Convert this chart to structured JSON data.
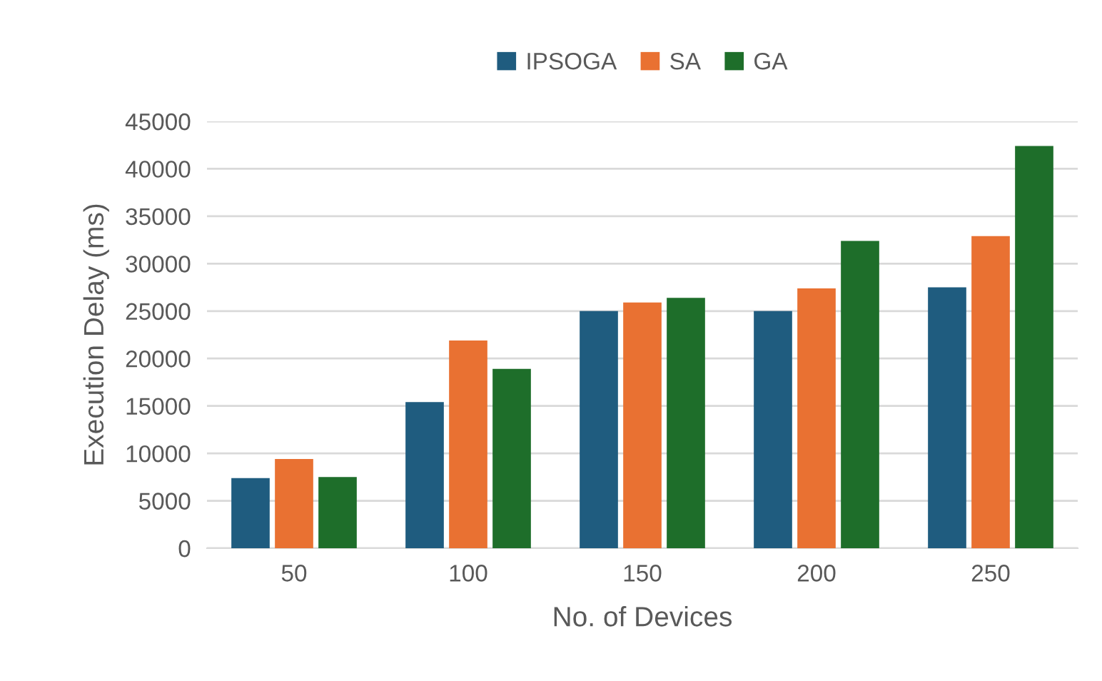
{
  "chart_data": {
    "type": "bar",
    "xlabel": "No. of Devices",
    "ylabel": "Execution Delay (ms)",
    "categories": [
      "50",
      "100",
      "150",
      "200",
      "250"
    ],
    "series": [
      {
        "name": "IPSOGA",
        "color": "#1f5c7f",
        "values": [
          7400,
          15400,
          25000,
          25000,
          27500
        ]
      },
      {
        "name": "SA",
        "color": "#e97132",
        "values": [
          9400,
          21900,
          25900,
          27400,
          32900
        ]
      },
      {
        "name": "GA",
        "color": "#1e6e2a",
        "values": [
          7500,
          18900,
          26400,
          32400,
          42400
        ]
      }
    ],
    "ylim": [
      0,
      45000
    ],
    "yticks": [
      0,
      5000,
      10000,
      15000,
      20000,
      25000,
      30000,
      35000,
      40000,
      45000
    ],
    "grid": "y",
    "legend": "top"
  }
}
